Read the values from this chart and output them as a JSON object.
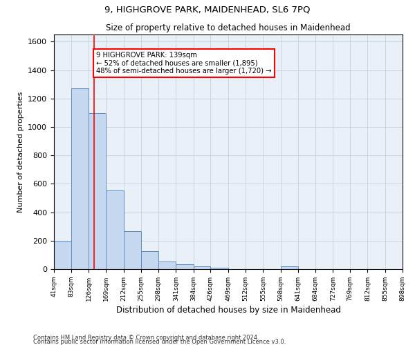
{
  "title1": "9, HIGHGROVE PARK, MAIDENHEAD, SL6 7PQ",
  "title2": "Size of property relative to detached houses in Maidenhead",
  "xlabel": "Distribution of detached houses by size in Maidenhead",
  "ylabel": "Number of detached properties",
  "footnote1": "Contains HM Land Registry data © Crown copyright and database right 2024.",
  "footnote2": "Contains public sector information licensed under the Open Government Licence v3.0.",
  "annotation_line1": "9 HIGHGROVE PARK: 139sqm",
  "annotation_line2": "← 52% of detached houses are smaller (1,895)",
  "annotation_line3": "48% of semi-detached houses are larger (1,720) →",
  "bar_edges": [
    41,
    83,
    126,
    169,
    212,
    255,
    298,
    341,
    384,
    426,
    469,
    512,
    555,
    598,
    641,
    684,
    727,
    769,
    812,
    855,
    898
  ],
  "bar_heights": [
    195,
    1270,
    1095,
    555,
    265,
    125,
    55,
    32,
    20,
    10,
    0,
    0,
    0,
    20,
    0,
    0,
    0,
    0,
    0,
    0
  ],
  "bar_color": "#c5d8ef",
  "bar_edge_color": "#5b8ec4",
  "red_line_x": 139,
  "ylim": [
    0,
    1650
  ],
  "yticks": [
    0,
    200,
    400,
    600,
    800,
    1000,
    1200,
    1400,
    1600
  ],
  "bg_color": "#eaf0f8",
  "grid_color": "#c0cfe0"
}
